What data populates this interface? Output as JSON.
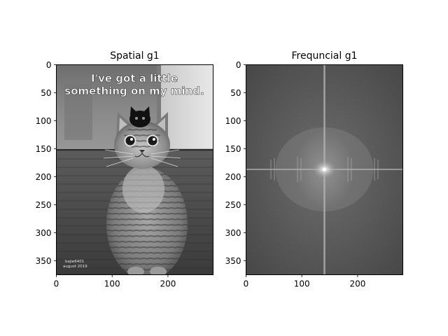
{
  "figure": {
    "background": "#ffffff"
  },
  "chart_data": [
    {
      "type": "heatmap",
      "title": "Spatial g1",
      "xlabel": "",
      "ylabel": "",
      "xlim": [
        0,
        281
      ],
      "ylim": [
        375,
        0
      ],
      "xticks": [
        0,
        100,
        200
      ],
      "yticks": [
        0,
        50,
        100,
        150,
        200,
        250,
        300,
        350
      ],
      "image_content": "grayscale photo of a tabby cat with a small black kitten on its head",
      "image_text": {
        "caption_line1": "I've got a little",
        "caption_line2": "something on my mind.",
        "watermark_line1": "bajie6401",
        "watermark_line2": "august 2019"
      },
      "colormap": "gray"
    },
    {
      "type": "heatmap",
      "title": "Frequncial g1",
      "xlabel": "",
      "ylabel": "",
      "xlim": [
        0,
        281
      ],
      "ylim": [
        375,
        0
      ],
      "xticks": [
        0,
        100,
        200
      ],
      "yticks": [
        0,
        50,
        100,
        150,
        200,
        250,
        300,
        350
      ],
      "image_content": "log-magnitude Fourier spectrum, centered, bright cross through the center",
      "colormap": "gray"
    }
  ]
}
